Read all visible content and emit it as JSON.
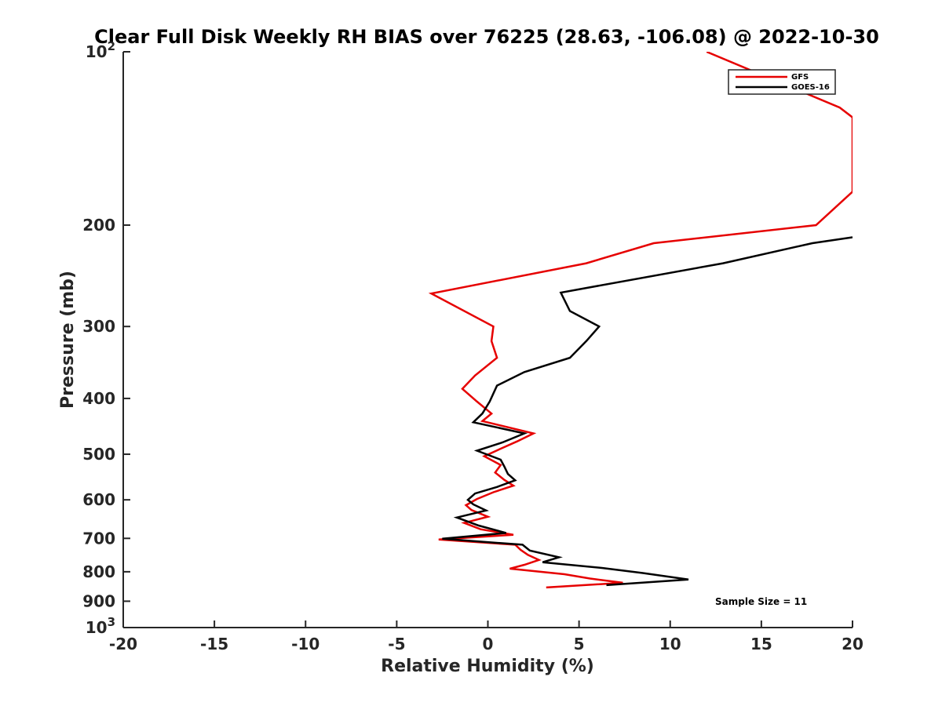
{
  "chart_data": {
    "type": "line",
    "title": "Clear Full Disk Weekly RH BIAS over 76225 (28.63, -106.08) @ 2022-10-30",
    "xlabel": "Relative Humidity (%)",
    "ylabel": "Pressure (mb)",
    "xlim": [
      -20,
      20
    ],
    "ylim": [
      100,
      1000
    ],
    "y_scale": "log",
    "y_reversed": true,
    "x_ticks": [
      -20,
      -15,
      -10,
      -5,
      0,
      5,
      10,
      15,
      20
    ],
    "x_tick_labels": [
      "-20",
      "-15",
      "-10",
      "-5",
      "0",
      "5",
      "10",
      "15",
      "20"
    ],
    "y_ticks": [
      {
        "value": 100,
        "base": "10",
        "exp": "2"
      },
      {
        "value": 200,
        "label": "200"
      },
      {
        "value": 300,
        "label": "300"
      },
      {
        "value": 400,
        "label": "400"
      },
      {
        "value": 500,
        "label": "500"
      },
      {
        "value": 600,
        "label": "600"
      },
      {
        "value": 700,
        "label": "700"
      },
      {
        "value": 800,
        "label": "800"
      },
      {
        "value": 900,
        "label": "900"
      },
      {
        "value": 1000,
        "base": "10",
        "exp": "3"
      }
    ],
    "legend_position": "top-right",
    "grid": false,
    "annotation": "Sample Size = 11",
    "series": [
      {
        "name": "GFS",
        "color": "#e60000",
        "points": [
          [
            12.0,
            100
          ],
          [
            19.3,
            125
          ],
          [
            20.0,
            130
          ],
          [
            20.0,
            175
          ],
          [
            18.0,
            200
          ],
          [
            9.1,
            215
          ],
          [
            5.4,
            233
          ],
          [
            -3.1,
            263
          ],
          [
            0.3,
            300
          ],
          [
            0.2,
            318
          ],
          [
            0.5,
            340
          ],
          [
            -0.7,
            365
          ],
          [
            -1.4,
            385
          ],
          [
            -0.6,
            405
          ],
          [
            0.2,
            425
          ],
          [
            -0.3,
            438
          ],
          [
            2.5,
            460
          ],
          [
            1.6,
            475
          ],
          [
            0.7,
            489
          ],
          [
            -0.2,
            504
          ],
          [
            0.7,
            522
          ],
          [
            0.4,
            538
          ],
          [
            0.9,
            554
          ],
          [
            1.4,
            567
          ],
          [
            0.3,
            582
          ],
          [
            -0.6,
            598
          ],
          [
            -1.2,
            613
          ],
          [
            -0.9,
            625
          ],
          [
            0.0,
            642
          ],
          [
            -1.3,
            658
          ],
          [
            -0.4,
            675
          ],
          [
            1.4,
            690
          ],
          [
            -2.7,
            703
          ],
          [
            1.5,
            718
          ],
          [
            1.8,
            733
          ],
          [
            2.2,
            748
          ],
          [
            2.8,
            763
          ],
          [
            2.0,
            778
          ],
          [
            1.2,
            790
          ],
          [
            4.2,
            808
          ],
          [
            5.6,
            822
          ],
          [
            7.4,
            836
          ],
          [
            3.2,
            852
          ]
        ]
      },
      {
        "name": "GOES-16",
        "color": "#000000",
        "points": [
          [
            20.0,
            210
          ],
          [
            17.8,
            215
          ],
          [
            12.9,
            233
          ],
          [
            4.0,
            262
          ],
          [
            4.5,
            282
          ],
          [
            6.1,
            300
          ],
          [
            5.4,
            318
          ],
          [
            4.5,
            340
          ],
          [
            2.0,
            360
          ],
          [
            0.5,
            380
          ],
          [
            0.1,
            405
          ],
          [
            -0.3,
            425
          ],
          [
            -0.8,
            440
          ],
          [
            2.0,
            460
          ],
          [
            0.8,
            477
          ],
          [
            -0.6,
            493
          ],
          [
            0.7,
            511
          ],
          [
            0.9,
            525
          ],
          [
            1.1,
            541
          ],
          [
            1.5,
            555
          ],
          [
            0.5,
            570
          ],
          [
            -0.7,
            585
          ],
          [
            -1.1,
            600
          ],
          [
            -0.8,
            611
          ],
          [
            -0.1,
            626
          ],
          [
            -1.7,
            644
          ],
          [
            -0.5,
            665
          ],
          [
            1.0,
            685
          ],
          [
            -2.5,
            701
          ],
          [
            1.9,
            718
          ],
          [
            2.3,
            735
          ],
          [
            3.9,
            755
          ],
          [
            3.0,
            770
          ],
          [
            6.3,
            788
          ],
          [
            8.5,
            804
          ],
          [
            11.0,
            825
          ],
          [
            6.5,
            844
          ]
        ]
      }
    ]
  }
}
